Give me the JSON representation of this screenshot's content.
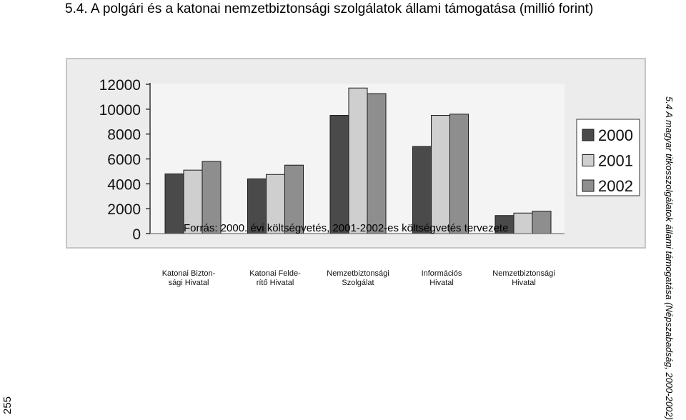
{
  "page": {
    "title": "5.4. A polgári és a katonai nemzetbiztonsági szolgálatok állami támogatása (millió forint)",
    "side_caption": "5.4 A magyar titkosszolgálatok állami támogatása (Népszabadság, 2000-2002)",
    "page_number": "255",
    "source": "Forrás: 2000. évi költségvetés, 2001-2002-es költségvetés tervezete"
  },
  "chart_data": {
    "type": "bar",
    "categories": [
      [
        "Katonai Bizton-",
        "sági Hivatal"
      ],
      [
        "Katonai Felde-",
        "rítő Hivatal"
      ],
      [
        "Nemzetbiztonsági",
        "Szolgálat"
      ],
      [
        "Információs",
        "Hivatal"
      ],
      [
        "Nemzetbiztonsági",
        "Hivatal"
      ]
    ],
    "series": [
      {
        "name": "2000",
        "color": "#4a4a4a",
        "values": [
          4800,
          4400,
          9500,
          7000,
          1450
        ]
      },
      {
        "name": "2001",
        "color": "#cfcfcf",
        "values": [
          5100,
          4750,
          11700,
          9500,
          1650
        ]
      },
      {
        "name": "2002",
        "color": "#8e8e8e",
        "values": [
          5800,
          5500,
          11250,
          9600,
          1800
        ]
      }
    ],
    "yticks": [
      "0",
      "2000",
      "4000",
      "6000",
      "8000",
      "10000",
      "12000"
    ],
    "ylim": [
      0,
      12000
    ],
    "legend_position": "right",
    "grid": false
  }
}
